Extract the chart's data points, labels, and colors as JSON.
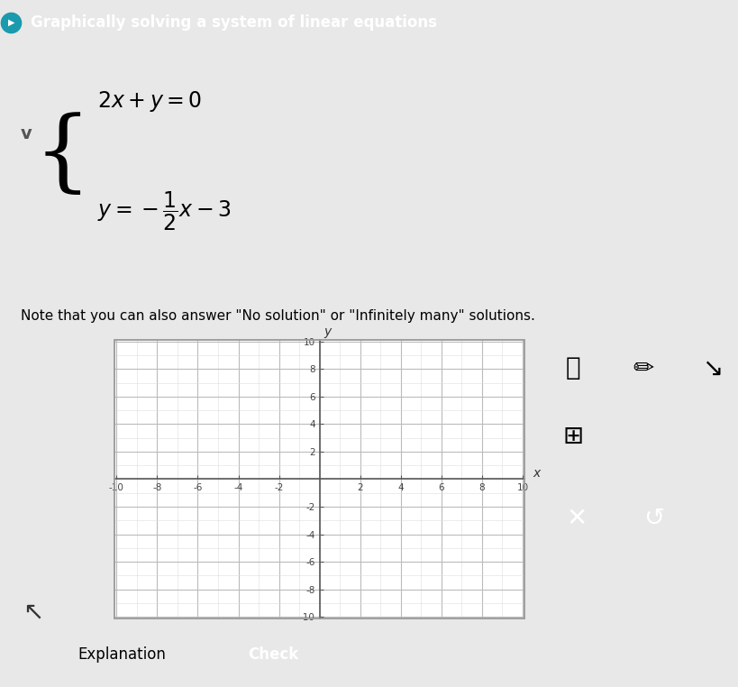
{
  "title": "Graphically solving a system of linear equations",
  "title_bg": "#26b5c8",
  "chevron_color": "#1a9aad",
  "bg_color": "#e8e8e8",
  "panel_bg": "#f0f0f0",
  "plot_bg": "#ffffff",
  "xmin": -10,
  "xmax": 10,
  "ymin": -10,
  "ymax": 10,
  "xticks": [
    -10,
    -8,
    -6,
    -4,
    -2,
    2,
    4,
    6,
    8,
    10
  ],
  "yticks": [
    -10,
    -8,
    -6,
    -4,
    -2,
    2,
    4,
    6,
    8,
    10
  ],
  "grid_major_color": "#bbbbbb",
  "grid_minor_color": "#dddddd",
  "axis_color": "#555555",
  "note": "Note that you can also answer \"No solution\" or \"Infinitely many\" solutions.",
  "button1_label": "Explanation",
  "button2_label": "Check",
  "teal": "#26b5c8",
  "icon_bg": "#d8d8d8",
  "icon_bg2": "#e0e0e0"
}
